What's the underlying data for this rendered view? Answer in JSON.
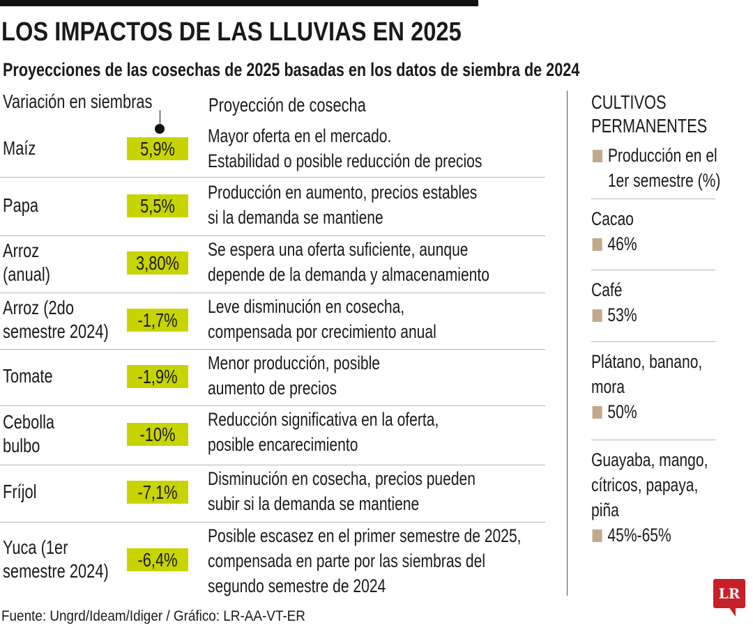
{
  "title": "LOS IMPACTOS DE LAS LLUVIAS EN 2025",
  "subtitle": "Proyecciones de las cosechas de 2025 basadas en los datos de siembra de 2024",
  "headers": {
    "variation": "Variación en siembras",
    "projection": "Proyección de cosecha"
  },
  "colors": {
    "bar": "#c8d400",
    "permanent_marker": "#c2a98c",
    "logo": "#c8202a"
  },
  "chart_data": {
    "type": "table",
    "columns": [
      "Variación en siembras",
      "Proyección de cosecha"
    ],
    "rows": [
      {
        "crop": [
          "Maíz"
        ],
        "variation": "5,9%",
        "projection": [
          "Mayor oferta en el mercado.",
          "Estabilidad o posible reducción de precios"
        ]
      },
      {
        "crop": [
          "Papa"
        ],
        "variation": "5,5%",
        "projection": [
          "Producción en aumento, precios estables",
          "si la demanda se mantiene"
        ]
      },
      {
        "crop": [
          "Arroz",
          "(anual)"
        ],
        "variation": "3,80%",
        "projection": [
          "Se espera una oferta suficiente, aunque",
          "depende de la demanda y almacenamiento"
        ]
      },
      {
        "crop": [
          "Arroz (2do",
          "semestre 2024)"
        ],
        "variation": "-1,7%",
        "projection": [
          "Leve disminución en cosecha,",
          "compensada por crecimiento anual"
        ]
      },
      {
        "crop": [
          "Tomate"
        ],
        "variation": "-1,9%",
        "projection": [
          "Menor producción, posible",
          "aumento de precios"
        ]
      },
      {
        "crop": [
          "Cebolla",
          "bulbo"
        ],
        "variation": "-10%",
        "projection": [
          "Reducción significativa en la oferta,",
          "posible encarecimiento"
        ]
      },
      {
        "crop": [
          "Fríjol"
        ],
        "variation": "-7,1%",
        "projection": [
          "Disminución en cosecha, precios pueden",
          "subir si la demanda se mantiene"
        ]
      },
      {
        "crop": [
          "Yuca (1er",
          "semestre 2024)"
        ],
        "variation": "-6,4%",
        "projection": [
          "Posible escasez en el primer semestre de 2025,",
          "compensada en parte por las siembras del",
          "segundo semestre de 2024"
        ]
      }
    ]
  },
  "permanent": {
    "title": [
      "CULTIVOS",
      "PERMANENTES"
    ],
    "legend": [
      "Producción en el",
      "1er semestre (%)"
    ],
    "items": [
      {
        "name": [
          "Cacao"
        ],
        "value": "46%"
      },
      {
        "name": [
          "Café"
        ],
        "value": "53%"
      },
      {
        "name": [
          "Plátano, banano,",
          "mora"
        ],
        "value": "50%"
      },
      {
        "name": [
          "Guayaba, mango,",
          "cítricos, papaya,",
          "piña"
        ],
        "value": "45%-65%"
      }
    ]
  },
  "source": "Fuente: Ungrd/Ideam/Idiger / Gráfico: LR-AA-VT-ER",
  "logo": "LR"
}
